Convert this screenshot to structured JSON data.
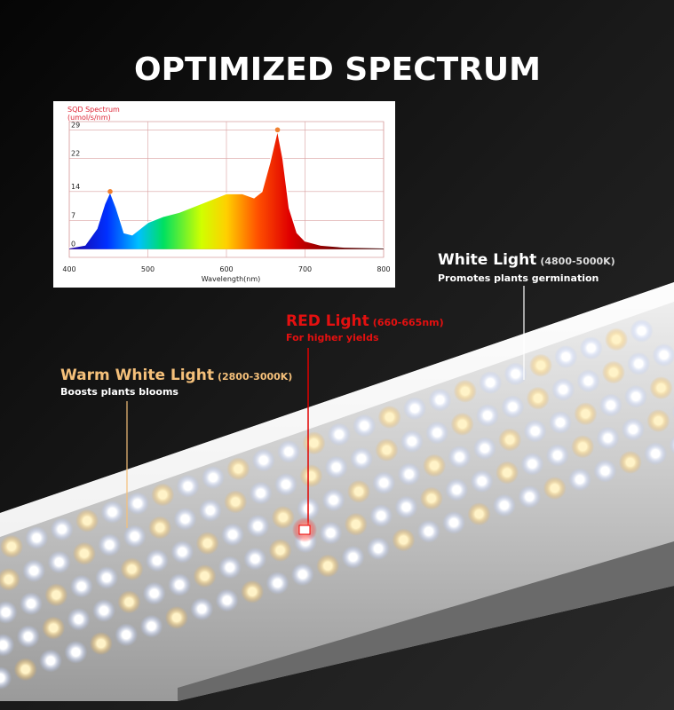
{
  "title": "OPTIMIZED SPECTRUM",
  "chart_data": {
    "type": "area",
    "ylabel": [
      "SQD Spectrum",
      "(umol/s/nm)"
    ],
    "xlabel": "Wavelength(nm)",
    "x": [
      400,
      420,
      435,
      445,
      452,
      460,
      470,
      480,
      490,
      500,
      520,
      540,
      560,
      580,
      600,
      620,
      635,
      645,
      655,
      665,
      672,
      680,
      690,
      700,
      720,
      750,
      800
    ],
    "values": [
      0.3,
      1,
      5,
      11,
      14,
      10,
      4,
      3.5,
      5,
      6.5,
      8,
      9,
      10.5,
      12,
      13.5,
      13.5,
      12.5,
      14,
      21,
      29,
      22,
      10,
      4,
      2,
      1,
      0.5,
      0.3
    ],
    "xlim": [
      400,
      800
    ],
    "ylim": [
      -2,
      31
    ],
    "xticks": [
      400,
      500,
      600,
      700,
      800
    ],
    "yticks": [
      0,
      7,
      14,
      22,
      29
    ],
    "grid": true
  },
  "callouts": [
    {
      "name": "White Light",
      "detail": "(4800-5000K)",
      "note": "Promotes plants germination"
    },
    {
      "name": "RED Light",
      "detail": "(660-665nm)",
      "note": "For higher yields"
    },
    {
      "name": "Warm White Light",
      "detail": "(2800-3000K)",
      "note": "Boosts plants blooms"
    }
  ]
}
